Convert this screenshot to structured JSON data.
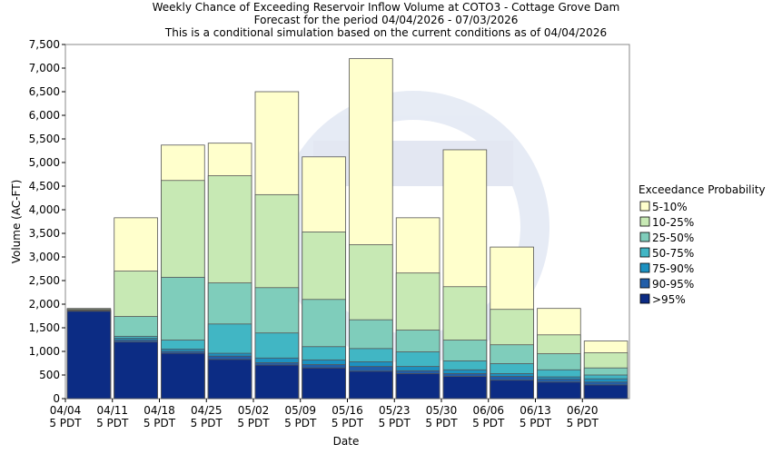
{
  "colors": {
    "5-10%": "#ffffcc",
    "10-25%": "#c7e9b4",
    "25-50%": "#7fcdbb",
    "50-75%": "#41b6c4",
    "75-90%": "#1d91c0",
    "90-95%": "#225ea8",
    ">95%": "#0c2c84"
  },
  "chart_data": {
    "type": "bar",
    "title": "Weekly Chance of Exceeding Reservoir Inflow Volume at COTO3 - Cottage Grove Dam",
    "subtitle": "Forecast for the period 04/04/2026 - 07/03/2026",
    "subtitle2": "This is a conditional simulation based on the current conditions as of 04/04/2026",
    "xlabel": "Date",
    "ylabel": "Volume (AC-FT)",
    "ylim": [
      0,
      7500
    ],
    "yticks": [
      "0",
      "500",
      "1,000",
      "1,500",
      "2,000",
      "2,500",
      "3,000",
      "3,500",
      "4,000",
      "4,500",
      "5,000",
      "5,500",
      "6,000",
      "6,500",
      "7,000",
      "7,500"
    ],
    "ytick_values": [
      0,
      500,
      1000,
      1500,
      2000,
      2500,
      3000,
      3500,
      4000,
      4500,
      5000,
      5500,
      6000,
      6500,
      7000,
      7500
    ],
    "xticks": [
      {
        "line1": "04/04",
        "line2": "5 PDT"
      },
      {
        "line1": "04/11",
        "line2": "5 PDT"
      },
      {
        "line1": "04/18",
        "line2": "5 PDT"
      },
      {
        "line1": "04/25",
        "line2": "5 PDT"
      },
      {
        "line1": "05/02",
        "line2": "5 PDT"
      },
      {
        "line1": "05/09",
        "line2": "5 PDT"
      },
      {
        "line1": "05/16",
        "line2": "5 PDT"
      },
      {
        "line1": "05/23",
        "line2": "5 PDT"
      },
      {
        "line1": "05/30",
        "line2": "5 PDT"
      },
      {
        "line1": "06/06",
        "line2": "5 PDT"
      },
      {
        "line1": "06/13",
        "line2": "5 PDT"
      },
      {
        "line1": "06/20",
        "line2": "5 PDT"
      }
    ],
    "legend_title": "Exceedance Probability",
    "legend_placement": "right",
    "grid": false,
    "series": [
      {
        "name": "5-10%",
        "values": [
          1910,
          3830,
          5370,
          5410,
          6500,
          5120,
          7200,
          3830,
          5270,
          3210,
          1910,
          1220
        ]
      },
      {
        "name": "10-25%",
        "values": [
          1900,
          2700,
          4620,
          4720,
          4320,
          3530,
          3260,
          2660,
          2370,
          1890,
          1350,
          970
        ]
      },
      {
        "name": "25-50%",
        "values": [
          1880,
          1740,
          2570,
          2450,
          2350,
          2100,
          1670,
          1450,
          1240,
          1140,
          950,
          650
        ]
      },
      {
        "name": "50-75%",
        "values": [
          1870,
          1320,
          1240,
          1580,
          1390,
          1100,
          1060,
          990,
          800,
          740,
          610,
          500
        ]
      },
      {
        "name": "75-90%",
        "values": [
          1865,
          1280,
          1050,
          960,
          860,
          820,
          780,
          680,
          610,
          530,
          460,
          420
        ]
      },
      {
        "name": "90-95%",
        "values": [
          1860,
          1240,
          1000,
          900,
          760,
          720,
          680,
          590,
          530,
          470,
          410,
          350
        ]
      },
      {
        "name": ">95%",
        "values": [
          1850,
          1200,
          960,
          830,
          710,
          650,
          580,
          530,
          470,
          390,
          350,
          290
        ]
      }
    ]
  }
}
